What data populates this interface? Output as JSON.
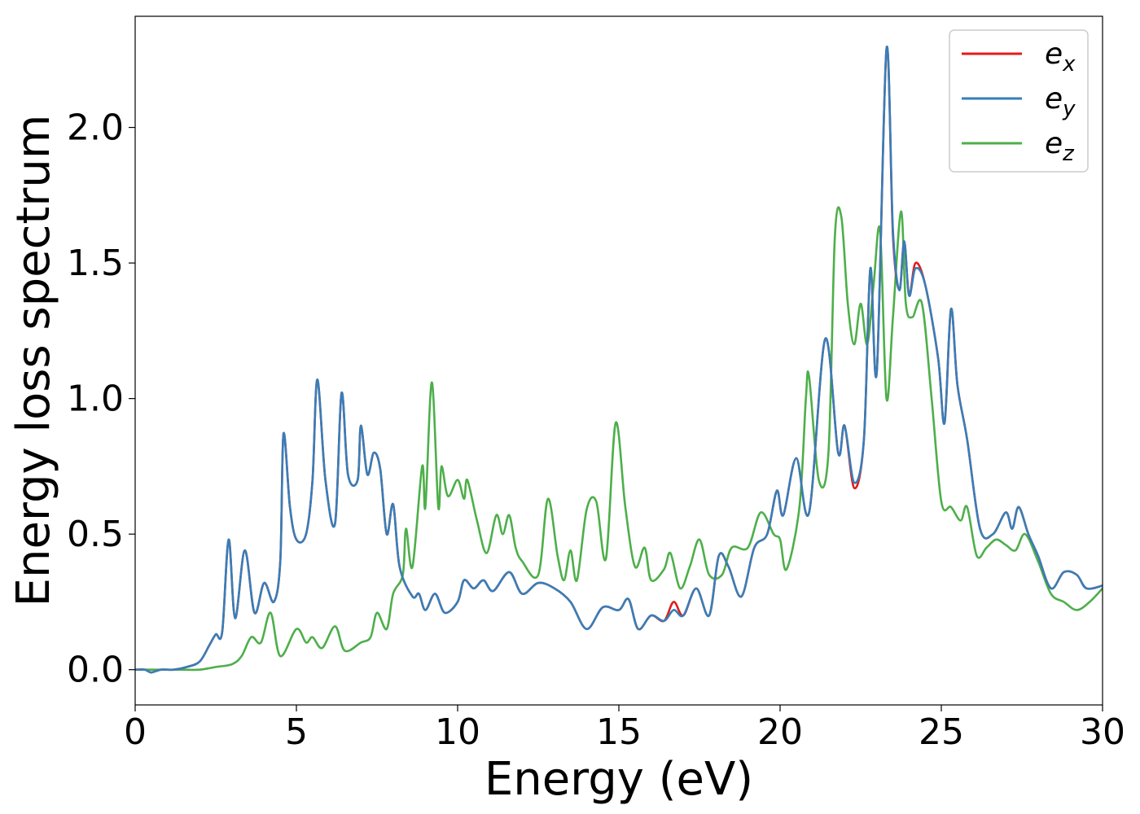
{
  "chart_data": {
    "type": "line",
    "xlabel": "Energy (eV)",
    "ylabel": "Energy loss spectrum",
    "xlim": [
      0,
      30
    ],
    "ylim": [
      -0.13,
      2.41
    ],
    "x_ticks": [
      {
        "value": 0,
        "label": "0"
      },
      {
        "value": 5,
        "label": "5"
      },
      {
        "value": 10,
        "label": "10"
      },
      {
        "value": 15,
        "label": "15"
      },
      {
        "value": 20,
        "label": "20"
      },
      {
        "value": 25,
        "label": "25"
      },
      {
        "value": 30,
        "label": "30"
      }
    ],
    "y_ticks": [
      {
        "value": 0.0,
        "label": "0.0"
      },
      {
        "value": 0.5,
        "label": "0.5"
      },
      {
        "value": 1.0,
        "label": "1.0"
      },
      {
        "value": 1.5,
        "label": "1.5"
      },
      {
        "value": 2.0,
        "label": "2.0"
      }
    ],
    "grid": false,
    "legend_position": "top-right",
    "series": [
      {
        "name": "e_x",
        "legend_base": "e",
        "legend_sub": "x",
        "color": "#e41a1c",
        "points": [
          [
            0,
            0
          ],
          [
            0.3,
            0.0
          ],
          [
            0.5,
            -0.01
          ],
          [
            0.8,
            0.0
          ],
          [
            1.2,
            0.0
          ],
          [
            1.6,
            0.01
          ],
          [
            2.0,
            0.03
          ],
          [
            2.3,
            0.09
          ],
          [
            2.5,
            0.13
          ],
          [
            2.7,
            0.14
          ],
          [
            2.9,
            0.48
          ],
          [
            3.1,
            0.19
          ],
          [
            3.4,
            0.44
          ],
          [
            3.7,
            0.21
          ],
          [
            4.0,
            0.32
          ],
          [
            4.3,
            0.25
          ],
          [
            4.5,
            0.4
          ],
          [
            4.6,
            0.87
          ],
          [
            4.8,
            0.6
          ],
          [
            5.0,
            0.48
          ],
          [
            5.3,
            0.5
          ],
          [
            5.5,
            0.7
          ],
          [
            5.65,
            1.07
          ],
          [
            5.9,
            0.7
          ],
          [
            6.2,
            0.54
          ],
          [
            6.4,
            1.02
          ],
          [
            6.6,
            0.72
          ],
          [
            6.9,
            0.7
          ],
          [
            7.0,
            0.9
          ],
          [
            7.2,
            0.72
          ],
          [
            7.4,
            0.8
          ],
          [
            7.6,
            0.74
          ],
          [
            7.8,
            0.5
          ],
          [
            8.0,
            0.61
          ],
          [
            8.2,
            0.38
          ],
          [
            8.6,
            0.27
          ],
          [
            8.8,
            0.28
          ],
          [
            9.0,
            0.22
          ],
          [
            9.3,
            0.28
          ],
          [
            9.6,
            0.21
          ],
          [
            10.0,
            0.25
          ],
          [
            10.2,
            0.33
          ],
          [
            10.5,
            0.3
          ],
          [
            10.8,
            0.33
          ],
          [
            11.1,
            0.29
          ],
          [
            11.6,
            0.36
          ],
          [
            12.0,
            0.28
          ],
          [
            12.5,
            0.32
          ],
          [
            13.0,
            0.3
          ],
          [
            13.5,
            0.25
          ],
          [
            14.0,
            0.15
          ],
          [
            14.5,
            0.23
          ],
          [
            15.0,
            0.22
          ],
          [
            15.3,
            0.26
          ],
          [
            15.6,
            0.15
          ],
          [
            16.0,
            0.2
          ],
          [
            16.4,
            0.18
          ],
          [
            16.7,
            0.25
          ],
          [
            17.0,
            0.2
          ],
          [
            17.4,
            0.3
          ],
          [
            17.8,
            0.2
          ],
          [
            18.1,
            0.42
          ],
          [
            18.4,
            0.38
          ],
          [
            18.8,
            0.27
          ],
          [
            19.2,
            0.45
          ],
          [
            19.6,
            0.5
          ],
          [
            19.9,
            0.66
          ],
          [
            20.1,
            0.57
          ],
          [
            20.5,
            0.78
          ],
          [
            20.9,
            0.58
          ],
          [
            21.4,
            1.22
          ],
          [
            21.8,
            0.8
          ],
          [
            22.0,
            0.9
          ],
          [
            22.3,
            0.67
          ],
          [
            22.6,
            0.85
          ],
          [
            22.8,
            1.48
          ],
          [
            23.0,
            1.1
          ],
          [
            23.3,
            2.29
          ],
          [
            23.5,
            1.6
          ],
          [
            23.7,
            1.4
          ],
          [
            23.85,
            1.58
          ],
          [
            24.0,
            1.38
          ],
          [
            24.2,
            1.5
          ],
          [
            24.5,
            1.42
          ],
          [
            24.9,
            1.15
          ],
          [
            25.1,
            0.91
          ],
          [
            25.3,
            1.33
          ],
          [
            25.5,
            1.05
          ],
          [
            25.8,
            0.85
          ],
          [
            26.2,
            0.52
          ],
          [
            26.6,
            0.5
          ],
          [
            27.0,
            0.58
          ],
          [
            27.2,
            0.52
          ],
          [
            27.4,
            0.6
          ],
          [
            27.7,
            0.5
          ],
          [
            28.0,
            0.42
          ],
          [
            28.4,
            0.3
          ],
          [
            28.8,
            0.36
          ],
          [
            29.2,
            0.35
          ],
          [
            29.5,
            0.3
          ],
          [
            30.0,
            0.31
          ]
        ]
      },
      {
        "name": "e_y",
        "legend_base": "e",
        "legend_sub": "y",
        "color": "#377eb8",
        "points": [
          [
            0,
            0
          ],
          [
            0.3,
            0.0
          ],
          [
            0.5,
            -0.01
          ],
          [
            0.8,
            0.0
          ],
          [
            1.2,
            0.0
          ],
          [
            1.6,
            0.01
          ],
          [
            2.0,
            0.03
          ],
          [
            2.3,
            0.09
          ],
          [
            2.5,
            0.13
          ],
          [
            2.7,
            0.14
          ],
          [
            2.9,
            0.48
          ],
          [
            3.1,
            0.19
          ],
          [
            3.4,
            0.44
          ],
          [
            3.7,
            0.21
          ],
          [
            4.0,
            0.32
          ],
          [
            4.3,
            0.25
          ],
          [
            4.5,
            0.4
          ],
          [
            4.6,
            0.87
          ],
          [
            4.8,
            0.6
          ],
          [
            5.0,
            0.48
          ],
          [
            5.3,
            0.5
          ],
          [
            5.5,
            0.7
          ],
          [
            5.65,
            1.07
          ],
          [
            5.9,
            0.7
          ],
          [
            6.2,
            0.54
          ],
          [
            6.4,
            1.02
          ],
          [
            6.6,
            0.72
          ],
          [
            6.9,
            0.7
          ],
          [
            7.0,
            0.9
          ],
          [
            7.2,
            0.72
          ],
          [
            7.4,
            0.8
          ],
          [
            7.6,
            0.74
          ],
          [
            7.8,
            0.5
          ],
          [
            8.0,
            0.61
          ],
          [
            8.2,
            0.38
          ],
          [
            8.6,
            0.27
          ],
          [
            8.8,
            0.28
          ],
          [
            9.0,
            0.22
          ],
          [
            9.3,
            0.28
          ],
          [
            9.6,
            0.21
          ],
          [
            10.0,
            0.25
          ],
          [
            10.2,
            0.33
          ],
          [
            10.5,
            0.3
          ],
          [
            10.8,
            0.33
          ],
          [
            11.1,
            0.29
          ],
          [
            11.6,
            0.36
          ],
          [
            12.0,
            0.28
          ],
          [
            12.5,
            0.32
          ],
          [
            13.0,
            0.3
          ],
          [
            13.5,
            0.25
          ],
          [
            14.0,
            0.15
          ],
          [
            14.5,
            0.23
          ],
          [
            15.0,
            0.22
          ],
          [
            15.3,
            0.26
          ],
          [
            15.6,
            0.15
          ],
          [
            16.0,
            0.2
          ],
          [
            16.4,
            0.18
          ],
          [
            16.7,
            0.22
          ],
          [
            17.0,
            0.2
          ],
          [
            17.4,
            0.3
          ],
          [
            17.8,
            0.2
          ],
          [
            18.1,
            0.42
          ],
          [
            18.4,
            0.38
          ],
          [
            18.8,
            0.27
          ],
          [
            19.2,
            0.45
          ],
          [
            19.6,
            0.5
          ],
          [
            19.9,
            0.66
          ],
          [
            20.1,
            0.57
          ],
          [
            20.5,
            0.78
          ],
          [
            20.9,
            0.58
          ],
          [
            21.4,
            1.22
          ],
          [
            21.8,
            0.8
          ],
          [
            22.0,
            0.9
          ],
          [
            22.3,
            0.69
          ],
          [
            22.6,
            0.85
          ],
          [
            22.8,
            1.48
          ],
          [
            23.0,
            1.1
          ],
          [
            23.3,
            2.29
          ],
          [
            23.5,
            1.62
          ],
          [
            23.7,
            1.4
          ],
          [
            23.85,
            1.58
          ],
          [
            24.0,
            1.38
          ],
          [
            24.2,
            1.48
          ],
          [
            24.5,
            1.42
          ],
          [
            24.9,
            1.15
          ],
          [
            25.1,
            0.91
          ],
          [
            25.3,
            1.33
          ],
          [
            25.5,
            1.05
          ],
          [
            25.8,
            0.85
          ],
          [
            26.2,
            0.52
          ],
          [
            26.6,
            0.5
          ],
          [
            27.0,
            0.58
          ],
          [
            27.2,
            0.52
          ],
          [
            27.4,
            0.6
          ],
          [
            27.7,
            0.5
          ],
          [
            28.0,
            0.42
          ],
          [
            28.4,
            0.3
          ],
          [
            28.8,
            0.36
          ],
          [
            29.2,
            0.35
          ],
          [
            29.5,
            0.3
          ],
          [
            30.0,
            0.31
          ]
        ]
      },
      {
        "name": "e_z",
        "legend_base": "e",
        "legend_sub": "z",
        "color": "#4daf4a",
        "points": [
          [
            0,
            0
          ],
          [
            0.5,
            0.0
          ],
          [
            1.0,
            0.0
          ],
          [
            1.5,
            0.0
          ],
          [
            2.0,
            0.0
          ],
          [
            2.5,
            0.01
          ],
          [
            3.0,
            0.02
          ],
          [
            3.3,
            0.05
          ],
          [
            3.6,
            0.12
          ],
          [
            3.9,
            0.1
          ],
          [
            4.2,
            0.21
          ],
          [
            4.5,
            0.05
          ],
          [
            5.0,
            0.15
          ],
          [
            5.3,
            0.1
          ],
          [
            5.5,
            0.12
          ],
          [
            5.8,
            0.08
          ],
          [
            6.2,
            0.16
          ],
          [
            6.5,
            0.07
          ],
          [
            7.0,
            0.1
          ],
          [
            7.3,
            0.12
          ],
          [
            7.5,
            0.21
          ],
          [
            7.8,
            0.15
          ],
          [
            8.0,
            0.28
          ],
          [
            8.3,
            0.35
          ],
          [
            8.4,
            0.52
          ],
          [
            8.6,
            0.38
          ],
          [
            8.9,
            0.75
          ],
          [
            9.0,
            0.6
          ],
          [
            9.2,
            1.06
          ],
          [
            9.4,
            0.6
          ],
          [
            9.5,
            0.75
          ],
          [
            9.7,
            0.64
          ],
          [
            10.0,
            0.7
          ],
          [
            10.2,
            0.63
          ],
          [
            10.3,
            0.7
          ],
          [
            10.6,
            0.55
          ],
          [
            10.9,
            0.43
          ],
          [
            11.2,
            0.57
          ],
          [
            11.4,
            0.5
          ],
          [
            11.6,
            0.57
          ],
          [
            11.8,
            0.45
          ],
          [
            12.0,
            0.4
          ],
          [
            12.5,
            0.35
          ],
          [
            12.8,
            0.63
          ],
          [
            13.1,
            0.42
          ],
          [
            13.3,
            0.33
          ],
          [
            13.5,
            0.44
          ],
          [
            13.7,
            0.33
          ],
          [
            14.0,
            0.59
          ],
          [
            14.3,
            0.62
          ],
          [
            14.6,
            0.41
          ],
          [
            14.9,
            0.91
          ],
          [
            15.2,
            0.6
          ],
          [
            15.5,
            0.38
          ],
          [
            15.8,
            0.45
          ],
          [
            16.0,
            0.33
          ],
          [
            16.4,
            0.37
          ],
          [
            16.6,
            0.43
          ],
          [
            16.9,
            0.3
          ],
          [
            17.2,
            0.38
          ],
          [
            17.5,
            0.48
          ],
          [
            17.8,
            0.35
          ],
          [
            18.2,
            0.35
          ],
          [
            18.5,
            0.45
          ],
          [
            19.0,
            0.45
          ],
          [
            19.4,
            0.58
          ],
          [
            19.8,
            0.5
          ],
          [
            20.0,
            0.48
          ],
          [
            20.2,
            0.37
          ],
          [
            20.6,
            0.6
          ],
          [
            20.8,
            1.0
          ],
          [
            20.9,
            1.08
          ],
          [
            21.2,
            0.7
          ],
          [
            21.5,
            0.8
          ],
          [
            21.7,
            1.6
          ],
          [
            21.9,
            1.67
          ],
          [
            22.1,
            1.35
          ],
          [
            22.3,
            1.2
          ],
          [
            22.5,
            1.35
          ],
          [
            22.7,
            1.2
          ],
          [
            22.9,
            1.42
          ],
          [
            23.1,
            1.62
          ],
          [
            23.3,
            1.0
          ],
          [
            23.5,
            1.3
          ],
          [
            23.75,
            1.69
          ],
          [
            23.9,
            1.35
          ],
          [
            24.1,
            1.3
          ],
          [
            24.4,
            1.35
          ],
          [
            24.7,
            1.0
          ],
          [
            25.0,
            0.62
          ],
          [
            25.3,
            0.6
          ],
          [
            25.6,
            0.55
          ],
          [
            25.8,
            0.6
          ],
          [
            26.1,
            0.42
          ],
          [
            26.4,
            0.45
          ],
          [
            26.7,
            0.48
          ],
          [
            27.0,
            0.46
          ],
          [
            27.3,
            0.44
          ],
          [
            27.6,
            0.5
          ],
          [
            28.0,
            0.4
          ],
          [
            28.4,
            0.28
          ],
          [
            28.8,
            0.25
          ],
          [
            29.2,
            0.22
          ],
          [
            29.6,
            0.25
          ],
          [
            30.0,
            0.3
          ]
        ]
      }
    ]
  }
}
